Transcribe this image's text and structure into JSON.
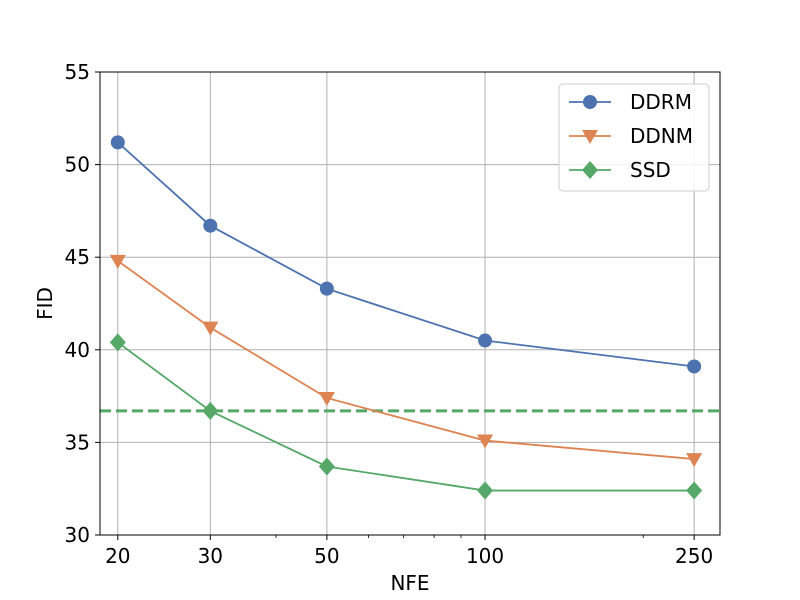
{
  "chart_data": {
    "type": "line",
    "xlabel": "NFE",
    "ylabel": "FID",
    "x_scale": "log",
    "xlim": [
      18.5,
      280
    ],
    "ylim": [
      30,
      55
    ],
    "x_ticks": [
      20,
      30,
      50,
      100,
      250
    ],
    "x_tick_labels": [
      "20",
      "30",
      "50",
      "100",
      "250"
    ],
    "y_ticks": [
      30,
      35,
      40,
      45,
      50,
      55
    ],
    "y_tick_labels": [
      "30",
      "35",
      "40",
      "45",
      "50",
      "55"
    ],
    "grid": true,
    "legend_position": "top-right",
    "x": [
      20,
      30,
      50,
      100,
      250
    ],
    "series": [
      {
        "name": "DDRM",
        "marker": "circle",
        "color": "#4c72b0",
        "values": [
          51.2,
          46.7,
          43.3,
          40.5,
          39.1
        ]
      },
      {
        "name": "DDNM",
        "marker": "triangle-down",
        "color": "#dd8452",
        "values": [
          44.8,
          41.2,
          37.4,
          35.1,
          34.1
        ]
      },
      {
        "name": "SSD",
        "marker": "diamond",
        "color": "#55a868",
        "values": [
          40.4,
          36.7,
          33.7,
          32.4,
          32.4
        ]
      }
    ],
    "reference_line": {
      "y": 36.7,
      "color": "#55a868",
      "style": "dashed"
    }
  }
}
